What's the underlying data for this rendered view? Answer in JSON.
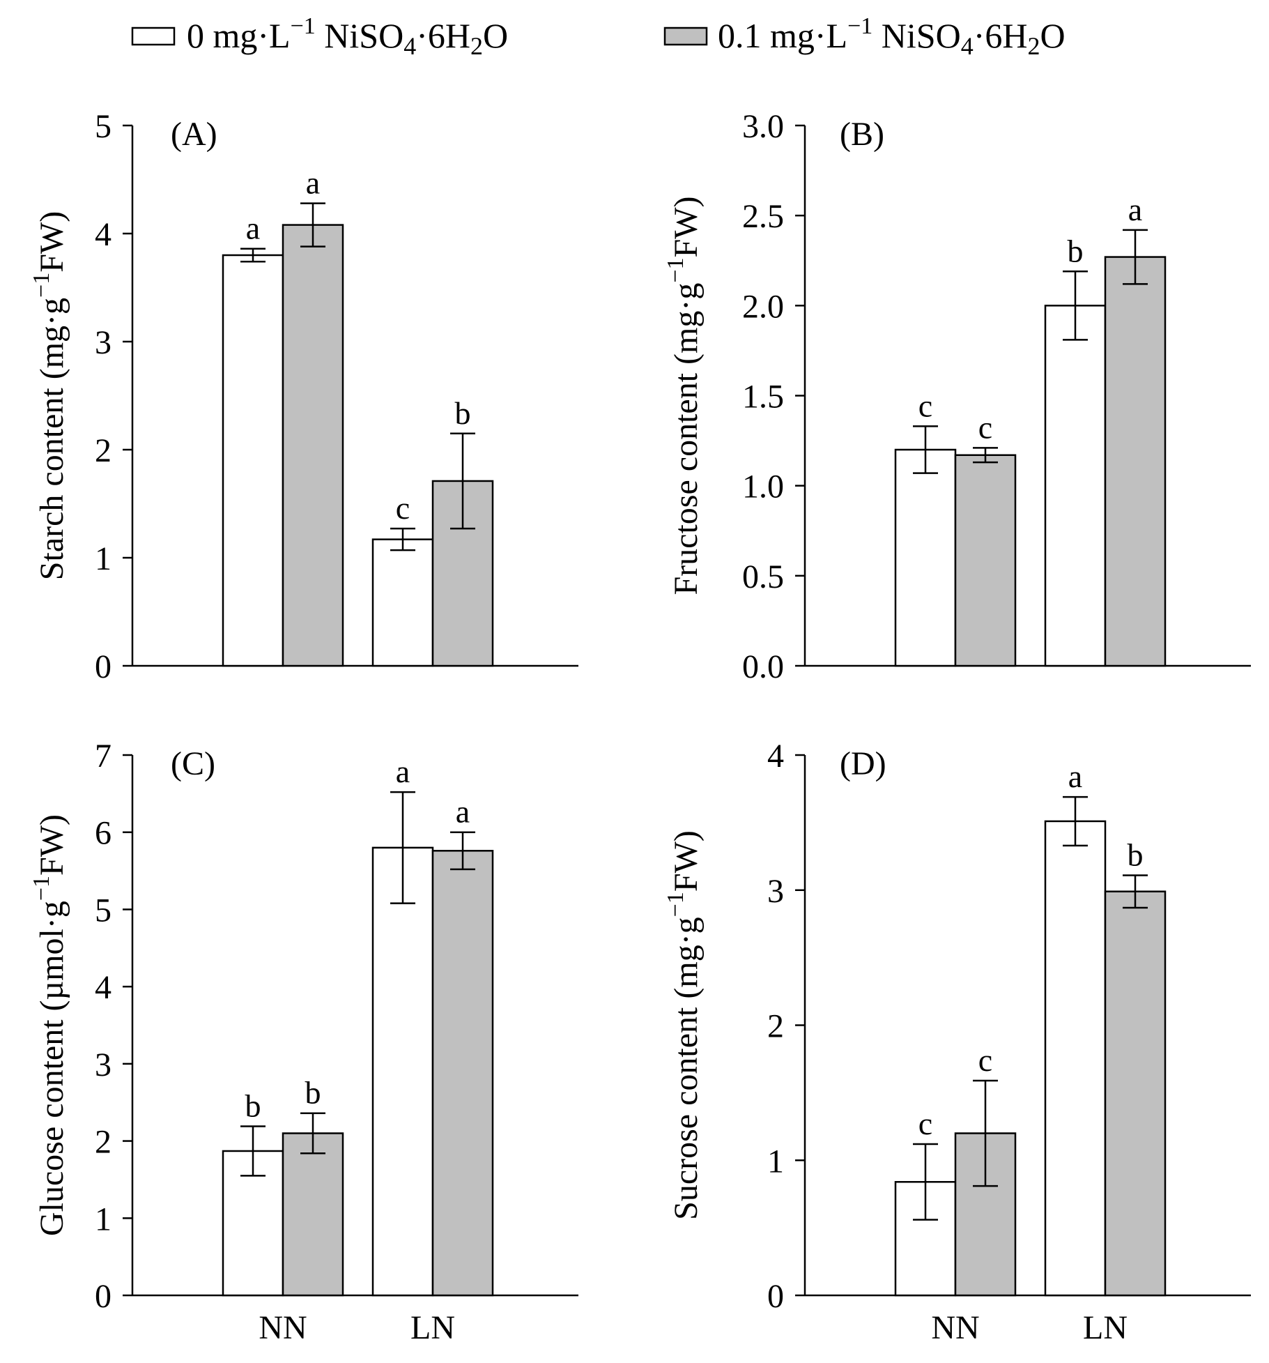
{
  "legend": {
    "placement": "top",
    "items": [
      {
        "label_prefix": "0 mg·L",
        "label_sup": "−1",
        "label_mid": " NiSO",
        "sub1": "4",
        "mid2": "·6H",
        "sub2": "2",
        "tail": "O",
        "fill": "#ffffff"
      },
      {
        "label_prefix": "0.1 mg·L",
        "label_sup": "−1",
        "label_mid": " NiSO",
        "sub1": "4",
        "mid2": "·6H",
        "sub2": "2",
        "tail": "O",
        "fill": "#c0c0c0"
      }
    ]
  },
  "colors": {
    "control": "#ffffff",
    "nickel": "#c0c0c0",
    "stroke": "#000000"
  },
  "chart_data": [
    {
      "type": "bar",
      "panel": "(A)",
      "ylabel_main": "Starch content (mg·g",
      "ylabel_sup": "−1",
      "ylabel_tail": "FW)",
      "categories": [
        "NN",
        "LN"
      ],
      "show_xticklabels": false,
      "ylim": [
        0,
        5
      ],
      "yticks": [
        0,
        1,
        2,
        3,
        4,
        5
      ],
      "ytick_labels": [
        "0",
        "1",
        "2",
        "3",
        "4",
        "5"
      ],
      "series": [
        {
          "name": "0 mg·L−1 NiSO4·6H2O",
          "values": [
            3.8,
            1.17
          ],
          "errors": [
            0.06,
            0.1
          ],
          "letters": [
            "a",
            "c"
          ]
        },
        {
          "name": "0.1 mg·L−1 NiSO4·6H2O",
          "values": [
            4.08,
            1.71
          ],
          "errors": [
            0.2,
            0.44
          ],
          "letters": [
            "a",
            "b"
          ]
        }
      ]
    },
    {
      "type": "bar",
      "panel": "(B)",
      "ylabel_main": "Fructose content (mg·g",
      "ylabel_sup": "−1",
      "ylabel_tail": "FW)",
      "categories": [
        "NN",
        "LN"
      ],
      "show_xticklabels": false,
      "ylim": [
        0,
        3
      ],
      "yticks": [
        0,
        0.5,
        1,
        1.5,
        2,
        2.5,
        3
      ],
      "ytick_labels": [
        "0.0",
        "0.5",
        "1.0",
        "1.5",
        "2.0",
        "2.5",
        "3.0"
      ],
      "series": [
        {
          "name": "0 mg·L−1 NiSO4·6H2O",
          "values": [
            1.2,
            2.0
          ],
          "errors": [
            0.13,
            0.19
          ],
          "letters": [
            "c",
            "b"
          ]
        },
        {
          "name": "0.1 mg·L−1 NiSO4·6H2O",
          "values": [
            1.17,
            2.27
          ],
          "errors": [
            0.04,
            0.15
          ],
          "letters": [
            "c",
            "a"
          ]
        }
      ]
    },
    {
      "type": "bar",
      "panel": "(C)",
      "ylabel_main": "Glucose content (µmol·g",
      "ylabel_sup": "−1",
      "ylabel_tail": "FW)",
      "categories": [
        "NN",
        "LN"
      ],
      "show_xticklabels": true,
      "ylim": [
        0,
        7
      ],
      "yticks": [
        0,
        1,
        2,
        3,
        4,
        5,
        6,
        7
      ],
      "ytick_labels": [
        "0",
        "1",
        "2",
        "3",
        "4",
        "5",
        "6",
        "7"
      ],
      "series": [
        {
          "name": "0 mg·L−1 NiSO4·6H2O",
          "values": [
            1.87,
            5.8
          ],
          "errors": [
            0.32,
            0.72
          ],
          "letters": [
            "b",
            "a"
          ]
        },
        {
          "name": "0.1 mg·L−1 NiSO4·6H2O",
          "values": [
            2.1,
            5.76
          ],
          "errors": [
            0.26,
            0.24
          ],
          "letters": [
            "b",
            "a"
          ]
        }
      ]
    },
    {
      "type": "bar",
      "panel": "(D)",
      "ylabel_main": "Sucrose content (mg·g",
      "ylabel_sup": "−1",
      "ylabel_tail": "FW)",
      "categories": [
        "NN",
        "LN"
      ],
      "show_xticklabels": true,
      "ylim": [
        0,
        4
      ],
      "yticks": [
        0,
        1,
        2,
        3,
        4
      ],
      "ytick_labels": [
        "0",
        "1",
        "2",
        "3",
        "4"
      ],
      "series": [
        {
          "name": "0 mg·L−1 NiSO4·6H2O",
          "values": [
            0.84,
            3.51
          ],
          "errors": [
            0.28,
            0.18
          ],
          "letters": [
            "c",
            "a"
          ]
        },
        {
          "name": "0.1 mg·L−1 NiSO4·6H2O",
          "values": [
            1.2,
            2.99
          ],
          "errors": [
            0.39,
            0.12
          ],
          "letters": [
            "c",
            "b"
          ]
        }
      ]
    }
  ]
}
